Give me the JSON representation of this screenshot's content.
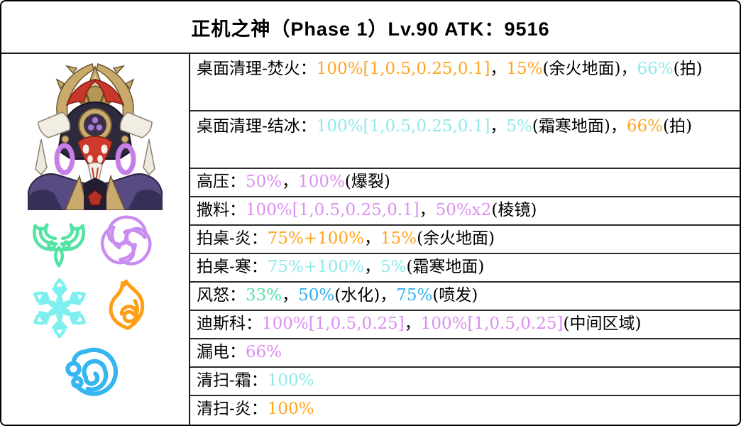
{
  "title": "正机之神（Phase 1）Lv.90 ATK：9516",
  "colors": {
    "black": "#000000",
    "pyro": "#FFA41F",
    "cryo": "#8FE9E9",
    "electro": "#DB8FF0",
    "anemo": "#55E3A4",
    "hydro": "#2FAFF0"
  },
  "element_icons": [
    {
      "name": "anemo-icon",
      "color": "#55E3A4"
    },
    {
      "name": "electro-icon",
      "color": "#C98CF0"
    },
    {
      "name": "cryo-icon",
      "color": "#7DEFEF"
    },
    {
      "name": "pyro-icon",
      "color": "#FF9E14"
    },
    {
      "name": "hydro-icon",
      "color": "#35B6F0"
    }
  ],
  "rows": [
    {
      "two_line": true,
      "segments": [
        {
          "t": "桌面清理-焚火：",
          "c": "black"
        },
        {
          "t": "100%[1,0.5,0.25,0.1]",
          "c": "pyro"
        },
        {
          "t": "，",
          "c": "black"
        },
        {
          "t": "15%",
          "c": "pyro"
        },
        {
          "t": "(余火地面)",
          "c": "black"
        },
        {
          "t": "，",
          "c": "black"
        },
        {
          "t": "66%",
          "c": "cryo"
        },
        {
          "t": "(拍)",
          "c": "black"
        }
      ]
    },
    {
      "two_line": true,
      "segments": [
        {
          "t": "桌面清理-结冰：",
          "c": "black"
        },
        {
          "t": "100%[1,0.5,0.25,0.1]",
          "c": "cryo"
        },
        {
          "t": "，",
          "c": "black"
        },
        {
          "t": "5%",
          "c": "cryo"
        },
        {
          "t": "(霜寒地面)",
          "c": "black"
        },
        {
          "t": "，",
          "c": "black"
        },
        {
          "t": "66%",
          "c": "pyro"
        },
        {
          "t": "(拍)",
          "c": "black"
        }
      ]
    },
    {
      "two_line": false,
      "segments": [
        {
          "t": "高压：",
          "c": "black"
        },
        {
          "t": "50%",
          "c": "electro"
        },
        {
          "t": "，",
          "c": "black"
        },
        {
          "t": "100%",
          "c": "electro"
        },
        {
          "t": "(爆裂)",
          "c": "black"
        }
      ]
    },
    {
      "two_line": false,
      "segments": [
        {
          "t": "撒料：",
          "c": "black"
        },
        {
          "t": "100%[1,0.5,0.25,0.1]",
          "c": "electro"
        },
        {
          "t": "，",
          "c": "black"
        },
        {
          "t": "50%x2",
          "c": "electro"
        },
        {
          "t": "(棱镜)",
          "c": "black"
        }
      ]
    },
    {
      "two_line": false,
      "segments": [
        {
          "t": "拍桌-炎：",
          "c": "black"
        },
        {
          "t": "75%+100%",
          "c": "pyro"
        },
        {
          "t": "，",
          "c": "black"
        },
        {
          "t": "15%",
          "c": "pyro"
        },
        {
          "t": "(余火地面)",
          "c": "black"
        }
      ]
    },
    {
      "two_line": false,
      "segments": [
        {
          "t": "拍桌-寒：",
          "c": "black"
        },
        {
          "t": "75%+100%",
          "c": "cryo"
        },
        {
          "t": "，",
          "c": "black"
        },
        {
          "t": "5%",
          "c": "cryo"
        },
        {
          "t": "(霜寒地面)",
          "c": "black"
        }
      ]
    },
    {
      "two_line": false,
      "segments": [
        {
          "t": "风怒：",
          "c": "black"
        },
        {
          "t": "33%",
          "c": "anemo"
        },
        {
          "t": "，",
          "c": "black"
        },
        {
          "t": "50%",
          "c": "hydro"
        },
        {
          "t": "(水化)",
          "c": "black"
        },
        {
          "t": "，",
          "c": "black"
        },
        {
          "t": "75%",
          "c": "hydro"
        },
        {
          "t": "(喷发)",
          "c": "black"
        }
      ]
    },
    {
      "two_line": false,
      "segments": [
        {
          "t": "迪斯科：",
          "c": "black"
        },
        {
          "t": "100%[1,0.5,0.25]",
          "c": "electro"
        },
        {
          "t": "，",
          "c": "black"
        },
        {
          "t": "100%[1,0.5,0.25]",
          "c": "electro"
        },
        {
          "t": "(中间区域)",
          "c": "black"
        }
      ]
    },
    {
      "two_line": false,
      "segments": [
        {
          "t": "漏电：",
          "c": "black"
        },
        {
          "t": "66%",
          "c": "electro"
        }
      ]
    },
    {
      "two_line": false,
      "segments": [
        {
          "t": "清扫-霜：",
          "c": "black"
        },
        {
          "t": "100%",
          "c": "cryo"
        }
      ]
    },
    {
      "two_line": false,
      "segments": [
        {
          "t": "清扫-炎：",
          "c": "black"
        },
        {
          "t": "100%",
          "c": "pyro"
        }
      ]
    }
  ]
}
